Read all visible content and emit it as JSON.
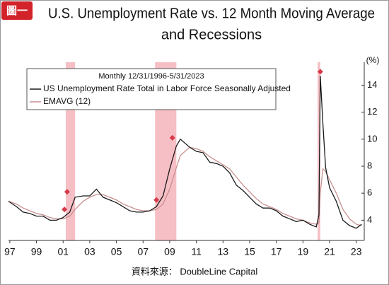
{
  "chart_data": {
    "type": "line",
    "badge": "圖一",
    "title": [
      "U.S. Unemployment Rate vs. 12 Month Moving Average",
      "and Recessions"
    ],
    "legend_title": "Monthly 12/31/1996-5/31/2023",
    "y_unit": "(%)",
    "source": "資料來源： DoubleLine Capital",
    "x": [
      1996.9,
      1997.5,
      1998.0,
      1998.5,
      1999.0,
      1999.5,
      2000.0,
      2000.5,
      2001.0,
      2001.5,
      2001.9,
      2002.5,
      2003.0,
      2003.5,
      2004.0,
      2004.5,
      2005.0,
      2005.5,
      2006.0,
      2006.5,
      2007.0,
      2007.5,
      2008.0,
      2008.5,
      2009.0,
      2009.5,
      2009.8,
      2010.5,
      2011.0,
      2011.5,
      2012.0,
      2012.5,
      2013.0,
      2013.5,
      2014.0,
      2014.5,
      2015.0,
      2015.5,
      2016.0,
      2016.5,
      2017.0,
      2017.5,
      2018.0,
      2018.5,
      2019.0,
      2019.5,
      2020.0,
      2020.2,
      2020.3,
      2020.5,
      2020.7,
      2021.0,
      2021.5,
      2022.0,
      2022.5,
      2023.0,
      2023.4
    ],
    "series": [
      {
        "name": "US Unemployment Rate Total in Labor Force Seasonally Adjusted",
        "color": "#1a1a1a",
        "width": 1.3,
        "values": [
          5.4,
          5.0,
          4.6,
          4.5,
          4.3,
          4.3,
          4.0,
          4.0,
          4.2,
          4.6,
          5.7,
          5.8,
          5.8,
          6.3,
          5.7,
          5.5,
          5.3,
          5.0,
          4.7,
          4.6,
          4.6,
          4.7,
          5.0,
          5.8,
          7.8,
          9.5,
          10.0,
          9.4,
          9.1,
          9.0,
          8.3,
          8.2,
          8.0,
          7.5,
          6.6,
          6.2,
          5.7,
          5.2,
          4.9,
          4.9,
          4.7,
          4.3,
          4.1,
          3.9,
          4.0,
          3.7,
          3.5,
          4.4,
          14.7,
          11.1,
          7.9,
          6.4,
          5.4,
          4.0,
          3.6,
          3.4,
          3.7
        ]
      },
      {
        "name": "EMAVG (12)",
        "color": "#c98f8f",
        "width": 1.3,
        "values": [
          5.4,
          5.2,
          4.9,
          4.7,
          4.5,
          4.4,
          4.2,
          4.1,
          4.1,
          4.3,
          4.8,
          5.4,
          5.7,
          5.9,
          5.9,
          5.7,
          5.5,
          5.2,
          5.0,
          4.8,
          4.7,
          4.7,
          4.8,
          5.2,
          6.3,
          7.9,
          8.8,
          9.4,
          9.3,
          9.1,
          8.7,
          8.4,
          8.1,
          7.8,
          7.2,
          6.6,
          6.1,
          5.6,
          5.2,
          5.0,
          4.8,
          4.5,
          4.3,
          4.1,
          4.0,
          3.8,
          3.7,
          3.8,
          6.0,
          7.8,
          7.6,
          7.0,
          6.0,
          4.8,
          4.1,
          3.7,
          3.6
        ]
      }
    ],
    "recessions": [
      [
        2001.2,
        2001.9
      ],
      [
        2007.9,
        2009.5
      ],
      [
        2020.1,
        2020.3
      ]
    ],
    "recession_color": "#f2a9b2",
    "markers": {
      "x": [
        2001.1,
        2001.3,
        2008.0,
        2009.2,
        2020.3
      ],
      "values": [
        4.8,
        6.1,
        5.5,
        10.1,
        15.0
      ],
      "color": "#d63a4a"
    },
    "xlim": [
      1996.9,
      2023.6
    ],
    "ylim": [
      2.5,
      15.7
    ],
    "xticks": [
      {
        "value": 1997,
        "label": "97"
      },
      {
        "value": 1999,
        "label": "99"
      },
      {
        "value": 2001,
        "label": "01"
      },
      {
        "value": 2003,
        "label": "03"
      },
      {
        "value": 2005,
        "label": "05"
      },
      {
        "value": 2007,
        "label": "07"
      },
      {
        "value": 2009,
        "label": "09"
      },
      {
        "value": 2011,
        "label": "11"
      },
      {
        "value": 2013,
        "label": "13"
      },
      {
        "value": 2015,
        "label": "15"
      },
      {
        "value": 2017,
        "label": "17"
      },
      {
        "value": 2019,
        "label": "19"
      },
      {
        "value": 2021,
        "label": "21"
      },
      {
        "value": 2023,
        "label": "23"
      }
    ],
    "yticks": [
      4,
      6,
      8,
      10,
      12,
      14
    ]
  }
}
